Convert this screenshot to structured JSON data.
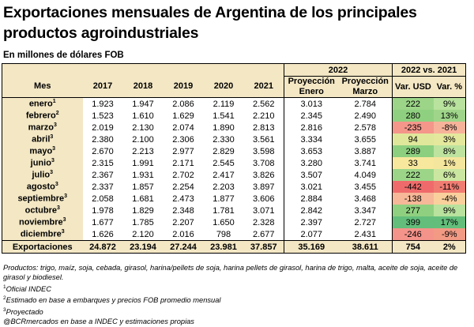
{
  "title": "Exportaciones mensuales de Argentina de los principales productos agroindustriales",
  "subtitle": "En millones de dólares FOB",
  "headers": {
    "group_2022": "2022",
    "group_var": "2022 vs. 2021",
    "mes": "Mes",
    "y2017": "2017",
    "y2018": "2018",
    "y2019": "2019",
    "y2020": "2020",
    "y2021": "2021",
    "proy_enero": "Proyección Enero",
    "proy_marzo": "Proyección Marzo",
    "var_usd": "Var. USD",
    "var_pct": "Var. %"
  },
  "rows": [
    {
      "mes": "enero",
      "sup": "1",
      "v2017": "1.923",
      "v2018": "1.947",
      "v2019": "2.086",
      "v2020": "2.119",
      "v2021": "2.562",
      "proy_enero": "3.013",
      "proy_marzo": "2.784",
      "var_usd": "222",
      "var_pct": "9%",
      "color_usd": "#9cd588",
      "color_pct": "#b8e29d"
    },
    {
      "mes": "febrero",
      "sup": "2",
      "v2017": "1.523",
      "v2018": "1.610",
      "v2019": "1.629",
      "v2020": "1.541",
      "v2021": "2.210",
      "proy_enero": "2.345",
      "proy_marzo": "2.490",
      "var_usd": "280",
      "var_pct": "13%",
      "color_usd": "#8fd080",
      "color_pct": "#9fd58a"
    },
    {
      "mes": "marzo",
      "sup": "3",
      "v2017": "2.019",
      "v2018": "2.130",
      "v2019": "2.074",
      "v2020": "1.890",
      "v2021": "2.813",
      "proy_enero": "2.816",
      "proy_marzo": "2.578",
      "var_usd": "-235",
      "var_pct": "-8%",
      "color_usd": "#f4968a",
      "color_pct": "#f7b39a"
    },
    {
      "mes": "abril",
      "sup": "3",
      "v2017": "2.380",
      "v2018": "2.100",
      "v2019": "2.306",
      "v2020": "2.330",
      "v2021": "3.561",
      "proy_enero": "3.334",
      "proy_marzo": "3.655",
      "var_usd": "94",
      "var_pct": "3%",
      "color_usd": "#dfe79b",
      "color_pct": "#e4e89d"
    },
    {
      "mes": "mayo",
      "sup": "3",
      "v2017": "2.670",
      "v2018": "2.213",
      "v2019": "2.977",
      "v2020": "2.829",
      "v2021": "3.598",
      "proy_enero": "3.653",
      "proy_marzo": "3.887",
      "var_usd": "289",
      "var_pct": "8%",
      "color_usd": "#8ccf7f",
      "color_pct": "#bde39f"
    },
    {
      "mes": "junio",
      "sup": "3",
      "v2017": "2.315",
      "v2018": "1.991",
      "v2019": "2.171",
      "v2020": "2.545",
      "v2021": "3.708",
      "proy_enero": "3.280",
      "proy_marzo": "3.741",
      "var_usd": "33",
      "var_pct": "1%",
      "color_usd": "#f7e89d",
      "color_pct": "#f5e69d"
    },
    {
      "mes": "julio",
      "sup": "3",
      "v2017": "2.367",
      "v2018": "1.931",
      "v2019": "2.702",
      "v2020": "2.417",
      "v2021": "3.826",
      "proy_enero": "3.507",
      "proy_marzo": "4.049",
      "var_usd": "222",
      "var_pct": "6%",
      "color_usd": "#9cd588",
      "color_pct": "#cbe6a0"
    },
    {
      "mes": "agosto",
      "sup": "3",
      "v2017": "2.337",
      "v2018": "1.857",
      "v2019": "2.254",
      "v2020": "2.203",
      "v2021": "3.897",
      "proy_enero": "3.021",
      "proy_marzo": "3.455",
      "var_usd": "-442",
      "var_pct": "-11%",
      "color_usd": "#ef6b6b",
      "color_pct": "#f07c72"
    },
    {
      "mes": "septiembre",
      "sup": "3",
      "v2017": "2.058",
      "v2018": "1.681",
      "v2019": "2.473",
      "v2020": "1.877",
      "v2021": "3.606",
      "proy_enero": "2.884",
      "proy_marzo": "3.468",
      "var_usd": "-138",
      "var_pct": "-4%",
      "color_usd": "#f6b898",
      "color_pct": "#f9d09c"
    },
    {
      "mes": "octubre",
      "sup": "3",
      "v2017": "1.978",
      "v2018": "1.829",
      "v2019": "2.348",
      "v2020": "1.781",
      "v2021": "3.071",
      "proy_enero": "2.842",
      "proy_marzo": "3.347",
      "var_usd": "277",
      "var_pct": "9%",
      "color_usd": "#8fd080",
      "color_pct": "#b8e29d"
    },
    {
      "mes": "noviembre",
      "sup": "3",
      "v2017": "1.677",
      "v2018": "1.785",
      "v2019": "2.207",
      "v2020": "1.650",
      "v2021": "2.328",
      "proy_enero": "2.397",
      "proy_marzo": "2.727",
      "var_usd": "399",
      "var_pct": "17%",
      "color_usd": "#63be7b",
      "color_pct": "#63be7b"
    },
    {
      "mes": "diciembre",
      "sup": "3",
      "v2017": "1.626",
      "v2018": "2.120",
      "v2019": "2.016",
      "v2020": "798",
      "v2021": "2.677",
      "proy_enero": "2.077",
      "proy_marzo": "2.431",
      "var_usd": "-246",
      "var_pct": "-9%",
      "color_usd": "#f4938a",
      "color_pct": "#f29a84"
    }
  ],
  "total": {
    "label": "Exportaciones",
    "v2017": "24.872",
    "v2018": "23.194",
    "v2019": "27.244",
    "v2020": "23.981",
    "v2021": "37.857",
    "proy_enero": "35.169",
    "proy_marzo": "38.611",
    "var_usd": "754",
    "var_pct": "2%"
  },
  "notes": {
    "products": "Productos: trigo, maíz, soja, cebada, girasol, harina/pellets de soja, harina pellets de girasol, harina de trigo, malta, aceite de soja, aceite de girasol y biodiesel.",
    "n1_sup": "1",
    "n1": "Oficial INDEC",
    "n2_sup": "2",
    "n2": "Estimado en base a embarques y precios FOB promedio mensual",
    "n3_sup": "3",
    "n3": "Proyectado",
    "source": "@BCRmercados en base a INDEC y estimaciones propias"
  }
}
